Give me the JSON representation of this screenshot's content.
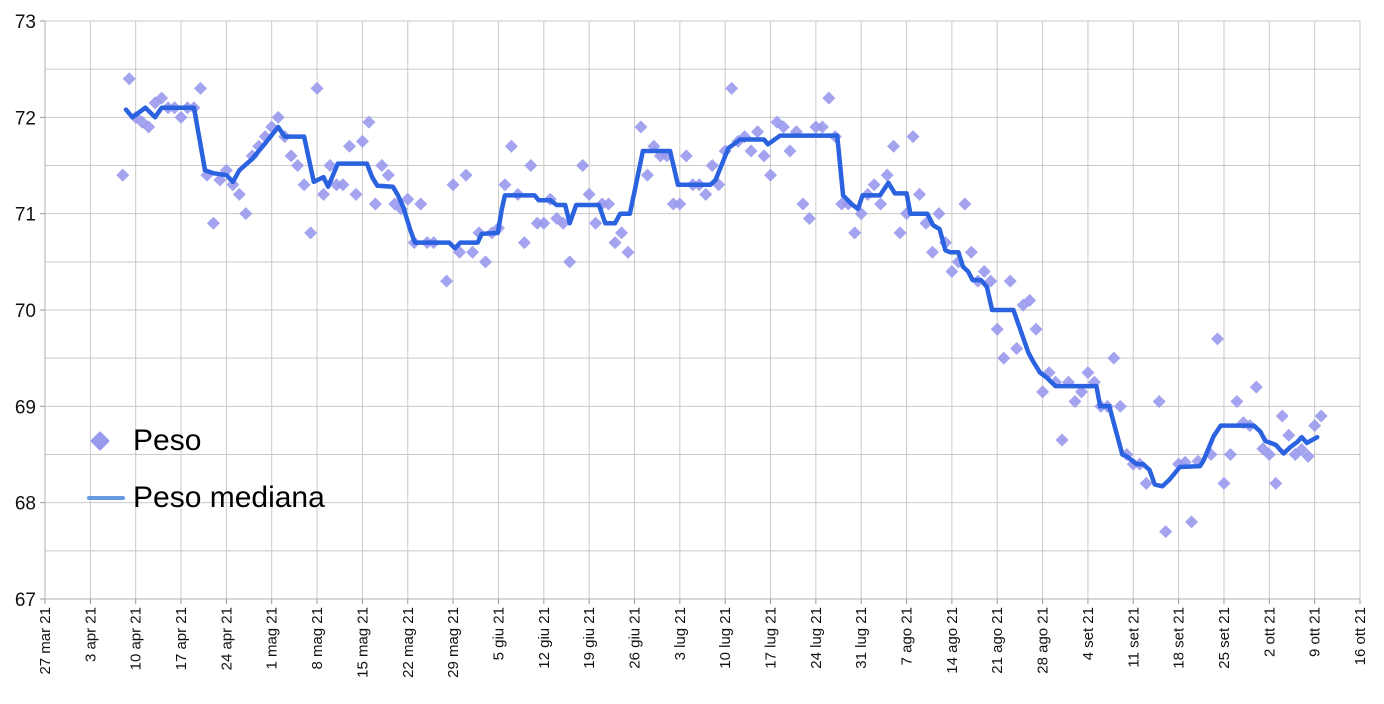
{
  "colors": {
    "background": "#ffffff",
    "grid": "#c9c9c9",
    "axis": "#b0b0b0",
    "tick": "#9a9a9a",
    "axis_label": "#111111",
    "peso_marker": "#9999ee",
    "mediana_line": "#2a62e0",
    "legend_line_swatch": "#6699dd"
  },
  "legend": {
    "peso_label": "Peso",
    "mediana_label": "Peso mediana"
  },
  "chart_data": {
    "type": "scatter",
    "title": "",
    "xlabel": "",
    "ylabel": "",
    "y_axis": {
      "min": 67,
      "max": 73,
      "major_step": 1,
      "minor_step": 0.5,
      "tick_labels": [
        "73",
        "72",
        "71",
        "70",
        "69",
        "68",
        "67"
      ]
    },
    "x_axis": {
      "unit": "days since first tick (weekly ticks)",
      "days_per_tick": 7,
      "tick_labels": [
        "27 mar 21",
        "3 apr 21",
        "10 apr 21",
        "17 apr 21",
        "24 apr 21",
        "1 mag 21",
        "8 mag 21",
        "15 mag 21",
        "22 mag 21",
        "29 mag 21",
        "5 giu 21",
        "12 giu 21",
        "19 giu 21",
        "26 giu 21",
        "3 lug 21",
        "10 lug 21",
        "17 lug 21",
        "24 lug 21",
        "31 lug 21",
        "7 ago 21",
        "14 ago 21",
        "21 ago 21",
        "28 ago 21",
        "4 set 21",
        "11 set 21",
        "18 set 21",
        "25 set 21",
        "2 ott 21",
        "9 ott 21",
        "16 ott 21"
      ]
    },
    "grid": true,
    "legend_position": "inside-left",
    "series": [
      {
        "name": "Peso",
        "type": "scatter",
        "marker": "diamond",
        "color": "#9999ee",
        "points": [
          [
            12,
            71.4
          ],
          [
            13,
            72.4
          ],
          [
            14,
            72.0
          ],
          [
            15,
            71.95
          ],
          [
            16,
            71.9
          ],
          [
            17,
            72.15
          ],
          [
            18,
            72.2
          ],
          [
            19,
            72.1
          ],
          [
            20,
            72.1
          ],
          [
            21,
            72.0
          ],
          [
            22,
            72.1
          ],
          [
            23,
            72.1
          ],
          [
            24,
            72.3
          ],
          [
            25,
            71.4
          ],
          [
            26,
            70.9
          ],
          [
            27,
            71.35
          ],
          [
            28,
            71.45
          ],
          [
            29,
            71.3
          ],
          [
            30,
            71.2
          ],
          [
            31,
            71.0
          ],
          [
            32,
            71.6
          ],
          [
            33,
            71.7
          ],
          [
            34,
            71.8
          ],
          [
            35,
            71.9
          ],
          [
            36,
            72.0
          ],
          [
            37,
            71.8
          ],
          [
            38,
            71.6
          ],
          [
            39,
            71.5
          ],
          [
            40,
            71.3
          ],
          [
            41,
            70.8
          ],
          [
            42,
            72.3
          ],
          [
            43,
            71.2
          ],
          [
            44,
            71.5
          ],
          [
            45,
            71.3
          ],
          [
            46,
            71.3
          ],
          [
            47,
            71.7
          ],
          [
            48,
            71.2
          ],
          [
            49,
            71.75
          ],
          [
            50,
            71.95
          ],
          [
            51,
            71.1
          ],
          [
            52,
            71.5
          ],
          [
            53,
            71.4
          ],
          [
            54,
            71.1
          ],
          [
            55,
            71.05
          ],
          [
            56,
            71.15
          ],
          [
            57,
            70.7
          ],
          [
            58,
            71.1
          ],
          [
            59,
            70.7
          ],
          [
            60,
            70.7
          ],
          [
            62,
            70.3
          ],
          [
            63,
            71.3
          ],
          [
            64,
            70.6
          ],
          [
            65,
            71.4
          ],
          [
            66,
            70.6
          ],
          [
            67,
            70.8
          ],
          [
            68,
            70.5
          ],
          [
            69,
            70.8
          ],
          [
            70,
            70.85
          ],
          [
            71,
            71.3
          ],
          [
            72,
            71.7
          ],
          [
            73,
            71.2
          ],
          [
            74,
            70.7
          ],
          [
            75,
            71.5
          ],
          [
            76,
            70.9
          ],
          [
            77,
            70.9
          ],
          [
            78,
            71.15
          ],
          [
            79,
            70.95
          ],
          [
            80,
            70.9
          ],
          [
            81,
            70.5
          ],
          [
            83,
            71.5
          ],
          [
            84,
            71.2
          ],
          [
            85,
            70.9
          ],
          [
            86,
            71.1
          ],
          [
            87,
            71.1
          ],
          [
            88,
            70.7
          ],
          [
            89,
            70.8
          ],
          [
            90,
            70.6
          ],
          [
            92,
            71.9
          ],
          [
            93,
            71.4
          ],
          [
            94,
            71.7
          ],
          [
            95,
            71.6
          ],
          [
            96,
            71.6
          ],
          [
            97,
            71.1
          ],
          [
            98,
            71.1
          ],
          [
            99,
            71.6
          ],
          [
            100,
            71.3
          ],
          [
            101,
            71.3
          ],
          [
            102,
            71.2
          ],
          [
            103,
            71.5
          ],
          [
            104,
            71.3
          ],
          [
            105,
            71.65
          ],
          [
            106,
            72.3
          ],
          [
            107,
            71.75
          ],
          [
            108,
            71.8
          ],
          [
            109,
            71.65
          ],
          [
            110,
            71.85
          ],
          [
            111,
            71.6
          ],
          [
            112,
            71.4
          ],
          [
            113,
            71.95
          ],
          [
            114,
            71.9
          ],
          [
            115,
            71.65
          ],
          [
            116,
            71.85
          ],
          [
            117,
            71.1
          ],
          [
            118,
            70.95
          ],
          [
            119,
            71.9
          ],
          [
            120,
            71.9
          ],
          [
            121,
            72.2
          ],
          [
            122,
            71.8
          ],
          [
            123,
            71.1
          ],
          [
            124,
            71.1
          ],
          [
            125,
            70.8
          ],
          [
            126,
            71.0
          ],
          [
            127,
            71.2
          ],
          [
            128,
            71.3
          ],
          [
            129,
            71.1
          ],
          [
            130,
            71.4
          ],
          [
            131,
            71.7
          ],
          [
            132,
            70.8
          ],
          [
            133,
            71.0
          ],
          [
            134,
            71.8
          ],
          [
            135,
            71.2
          ],
          [
            136,
            70.9
          ],
          [
            137,
            70.6
          ],
          [
            138,
            71.0
          ],
          [
            139,
            70.7
          ],
          [
            140,
            70.4
          ],
          [
            141,
            70.5
          ],
          [
            142,
            71.1
          ],
          [
            143,
            70.6
          ],
          [
            144,
            70.3
          ],
          [
            145,
            70.4
          ],
          [
            146,
            70.3
          ],
          [
            147,
            69.8
          ],
          [
            148,
            69.5
          ],
          [
            149,
            70.3
          ],
          [
            150,
            69.6
          ],
          [
            151,
            70.05
          ],
          [
            152,
            70.1
          ],
          [
            153,
            69.8
          ],
          [
            154,
            69.15
          ],
          [
            155,
            69.35
          ],
          [
            156,
            69.25
          ],
          [
            157,
            68.65
          ],
          [
            158,
            69.25
          ],
          [
            159,
            69.05
          ],
          [
            160,
            69.15
          ],
          [
            161,
            69.35
          ],
          [
            162,
            69.25
          ],
          [
            163,
            69.0
          ],
          [
            164,
            69.0
          ],
          [
            165,
            69.5
          ],
          [
            166,
            69.0
          ],
          [
            167,
            68.5
          ],
          [
            168,
            68.4
          ],
          [
            169,
            68.4
          ],
          [
            170,
            68.2
          ],
          [
            172,
            69.05
          ],
          [
            173,
            67.7
          ],
          [
            175,
            68.4
          ],
          [
            176,
            68.42
          ],
          [
            177,
            67.8
          ],
          [
            178,
            68.43
          ],
          [
            180,
            68.5
          ],
          [
            181,
            69.7
          ],
          [
            182,
            68.2
          ],
          [
            183,
            68.5
          ],
          [
            184,
            69.05
          ],
          [
            185,
            68.83
          ],
          [
            186,
            68.8
          ],
          [
            187,
            69.2
          ],
          [
            188,
            68.56
          ],
          [
            189,
            68.5
          ],
          [
            190,
            68.2
          ],
          [
            191,
            68.9
          ],
          [
            192,
            68.7
          ],
          [
            193,
            68.5
          ],
          [
            194,
            68.55
          ],
          [
            195,
            68.48
          ],
          [
            196,
            68.8
          ],
          [
            197,
            68.9
          ]
        ]
      },
      {
        "name": "Peso mediana",
        "type": "line",
        "color": "#2a62e0",
        "width": 4.5,
        "points": [
          [
            12.5,
            72.08
          ],
          [
            13.5,
            72.0
          ],
          [
            15.5,
            72.1
          ],
          [
            17,
            72.0
          ],
          [
            18,
            72.1
          ],
          [
            23,
            72.1
          ],
          [
            24.7,
            71.45
          ],
          [
            26,
            71.42
          ],
          [
            28,
            71.4
          ],
          [
            29,
            71.33
          ],
          [
            30,
            71.45
          ],
          [
            32,
            71.57
          ],
          [
            34,
            71.73
          ],
          [
            36,
            71.9
          ],
          [
            37,
            71.8
          ],
          [
            40,
            71.8
          ],
          [
            41.5,
            71.33
          ],
          [
            43,
            71.38
          ],
          [
            43.7,
            71.28
          ],
          [
            45.2,
            71.52
          ],
          [
            49.7,
            71.52
          ],
          [
            50.5,
            71.38
          ],
          [
            51.3,
            71.29
          ],
          [
            53.7,
            71.28
          ],
          [
            54.5,
            71.19
          ],
          [
            55.3,
            71.07
          ],
          [
            56.4,
            70.83
          ],
          [
            57.1,
            70.7
          ],
          [
            62.4,
            70.7
          ],
          [
            63.3,
            70.64
          ],
          [
            64.1,
            70.7
          ],
          [
            66.8,
            70.7
          ],
          [
            67.4,
            70.79
          ],
          [
            69.9,
            70.8
          ],
          [
            70.5,
            71.04
          ],
          [
            71,
            71.19
          ],
          [
            75.6,
            71.19
          ],
          [
            76.2,
            71.14
          ],
          [
            78,
            71.14
          ],
          [
            79,
            71.09
          ],
          [
            80.3,
            71.09
          ],
          [
            81,
            70.9
          ],
          [
            82,
            71.09
          ],
          [
            85.5,
            71.09
          ],
          [
            86.5,
            70.9
          ],
          [
            88,
            70.9
          ],
          [
            88.8,
            71.0
          ],
          [
            90.3,
            71.0
          ],
          [
            92.3,
            71.65
          ],
          [
            96.5,
            71.65
          ],
          [
            97.7,
            71.3
          ],
          [
            102.7,
            71.3
          ],
          [
            103.5,
            71.35
          ],
          [
            105.5,
            71.68
          ],
          [
            107.3,
            71.77
          ],
          [
            111,
            71.77
          ],
          [
            111.6,
            71.72
          ],
          [
            113.5,
            71.81
          ],
          [
            122.3,
            71.81
          ],
          [
            123.2,
            71.19
          ],
          [
            124.5,
            71.1
          ],
          [
            125.5,
            71.05
          ],
          [
            126.2,
            71.19
          ],
          [
            128.9,
            71.19
          ],
          [
            130.2,
            71.32
          ],
          [
            131.2,
            71.21
          ],
          [
            133,
            71.21
          ],
          [
            133.6,
            71.0
          ],
          [
            136.2,
            71.0
          ],
          [
            137.1,
            70.88
          ],
          [
            138.1,
            70.84
          ],
          [
            139,
            70.62
          ],
          [
            139.7,
            70.6
          ],
          [
            141,
            70.6
          ],
          [
            141.7,
            70.45
          ],
          [
            142.5,
            70.4
          ],
          [
            143.2,
            70.31
          ],
          [
            144.5,
            70.31
          ],
          [
            145.4,
            70.24
          ],
          [
            146.2,
            70.0
          ],
          [
            149.5,
            70.0
          ],
          [
            151.8,
            69.56
          ],
          [
            152.5,
            69.47
          ],
          [
            153.6,
            69.35
          ],
          [
            154.6,
            69.3
          ],
          [
            156,
            69.21
          ],
          [
            162.3,
            69.21
          ],
          [
            162.9,
            69.0
          ],
          [
            164.3,
            69.0
          ],
          [
            166.3,
            68.5
          ],
          [
            167,
            68.48
          ],
          [
            168.5,
            68.4
          ],
          [
            169.5,
            68.4
          ],
          [
            170.5,
            68.34
          ],
          [
            171.3,
            68.19
          ],
          [
            172.5,
            68.17
          ],
          [
            173.6,
            68.24
          ],
          [
            175.2,
            68.37
          ],
          [
            178.3,
            68.38
          ],
          [
            178.8,
            68.43
          ],
          [
            180.4,
            68.69
          ],
          [
            181.5,
            68.8
          ],
          [
            186.6,
            68.8
          ],
          [
            187.6,
            68.74
          ],
          [
            188.4,
            68.64
          ],
          [
            189.2,
            68.62
          ],
          [
            190,
            68.6
          ],
          [
            191.2,
            68.51
          ],
          [
            192.3,
            68.58
          ],
          [
            193.3,
            68.63
          ],
          [
            194,
            68.68
          ],
          [
            194.8,
            68.62
          ],
          [
            196.4,
            68.68
          ]
        ]
      }
    ]
  }
}
